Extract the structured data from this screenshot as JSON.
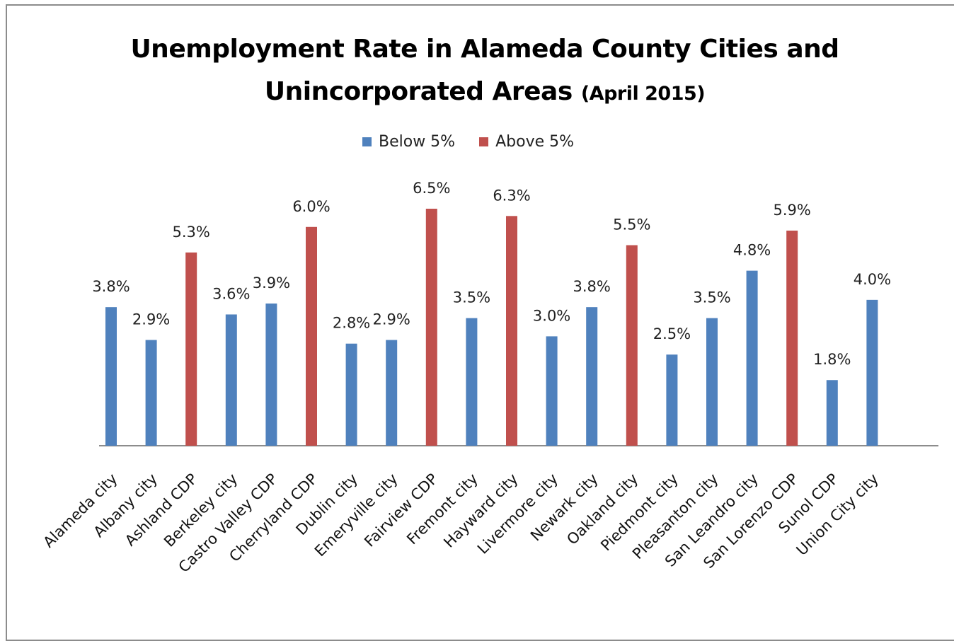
{
  "chart_data": {
    "type": "bar",
    "title_line_1": "Unemployment Rate in Alameda County Cities and",
    "title_line_2": "Unincorporated Areas",
    "title_suffix": "(April 2015)",
    "categories": [
      "Alameda city",
      "Albany city",
      "Ashland CDP",
      "Berkeley city",
      "Castro Valley CDP",
      "Cherryland CDP",
      "Dublin city",
      "Emeryville city",
      "Fairview CDP",
      "Fremont city",
      "Hayward city",
      "Livermore city",
      "Newark city",
      "Oakland city",
      "Piedmont city",
      "Pleasanton city",
      "San Leandro city",
      "San Lorenzo CDP",
      "Sunol CDP",
      "Union City city"
    ],
    "values": [
      3.8,
      2.9,
      5.3,
      3.6,
      3.9,
      6.0,
      2.8,
      2.9,
      6.5,
      3.5,
      6.3,
      3.0,
      3.8,
      5.5,
      2.5,
      3.5,
      4.8,
      5.9,
      1.8,
      4.0
    ],
    "value_labels": [
      "3.8%",
      "2.9%",
      "5.3%",
      "3.6%",
      "3.9%",
      "6.0%",
      "2.8%",
      "2.9%",
      "6.5%",
      "3.5%",
      "6.3%",
      "3.0%",
      "3.8%",
      "5.5%",
      "2.5%",
      "3.5%",
      "4.8%",
      "5.9%",
      "1.8%",
      "4.0%"
    ],
    "series": [
      {
        "name": "Below 5%",
        "color": "#4f81bd"
      },
      {
        "name": "Above 5%",
        "color": "#c0504d"
      }
    ],
    "ylim": [
      0,
      7
    ],
    "grid": false,
    "legend_position": "top-center"
  }
}
